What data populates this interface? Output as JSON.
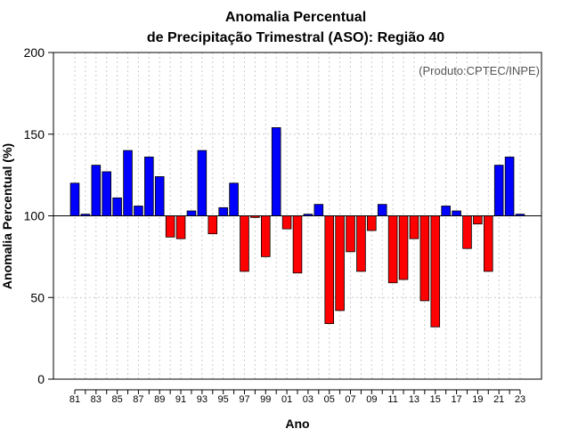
{
  "chart_data": {
    "type": "bar",
    "title_line1": "Anomalia Percentual",
    "title_line2": "de Precipitação Trimestral (ASO): Região 40",
    "xlabel": "Ano",
    "ylabel": "Anomalia Percentual (%)",
    "annotation": "(Produto:CPTEC/INPE)",
    "ylim": [
      0,
      200
    ],
    "yticks": [
      0,
      50,
      100,
      150,
      200
    ],
    "baseline": 100,
    "grid": true,
    "colors": {
      "above": "#0000ff",
      "below": "#ff0000",
      "baseline": "#000000",
      "grid": "#cccccc"
    },
    "categories": [
      "81",
      "82",
      "83",
      "84",
      "85",
      "86",
      "87",
      "88",
      "89",
      "90",
      "91",
      "92",
      "93",
      "94",
      "95",
      "96",
      "97",
      "98",
      "99",
      "00",
      "01",
      "02",
      "03",
      "04",
      "05",
      "06",
      "07",
      "08",
      "09",
      "10",
      "11",
      "12",
      "13",
      "14",
      "15",
      "16",
      "17",
      "18",
      "19",
      "20",
      "21",
      "22",
      "23"
    ],
    "xtick_labels": [
      "81",
      "83",
      "85",
      "87",
      "89",
      "91",
      "93",
      "95",
      "97",
      "99",
      "01",
      "03",
      "05",
      "07",
      "09",
      "11",
      "13",
      "15",
      "17",
      "19",
      "21",
      "23"
    ],
    "values": [
      120,
      101,
      131,
      127,
      111,
      140,
      106,
      136,
      124,
      87,
      86,
      103,
      140,
      89,
      105,
      120,
      66,
      99,
      75,
      154,
      92,
      65,
      101,
      107,
      34,
      42,
      78,
      66,
      91,
      107,
      59,
      61,
      86,
      48,
      32,
      106,
      103,
      80,
      95,
      66,
      131,
      136,
      101
    ]
  }
}
